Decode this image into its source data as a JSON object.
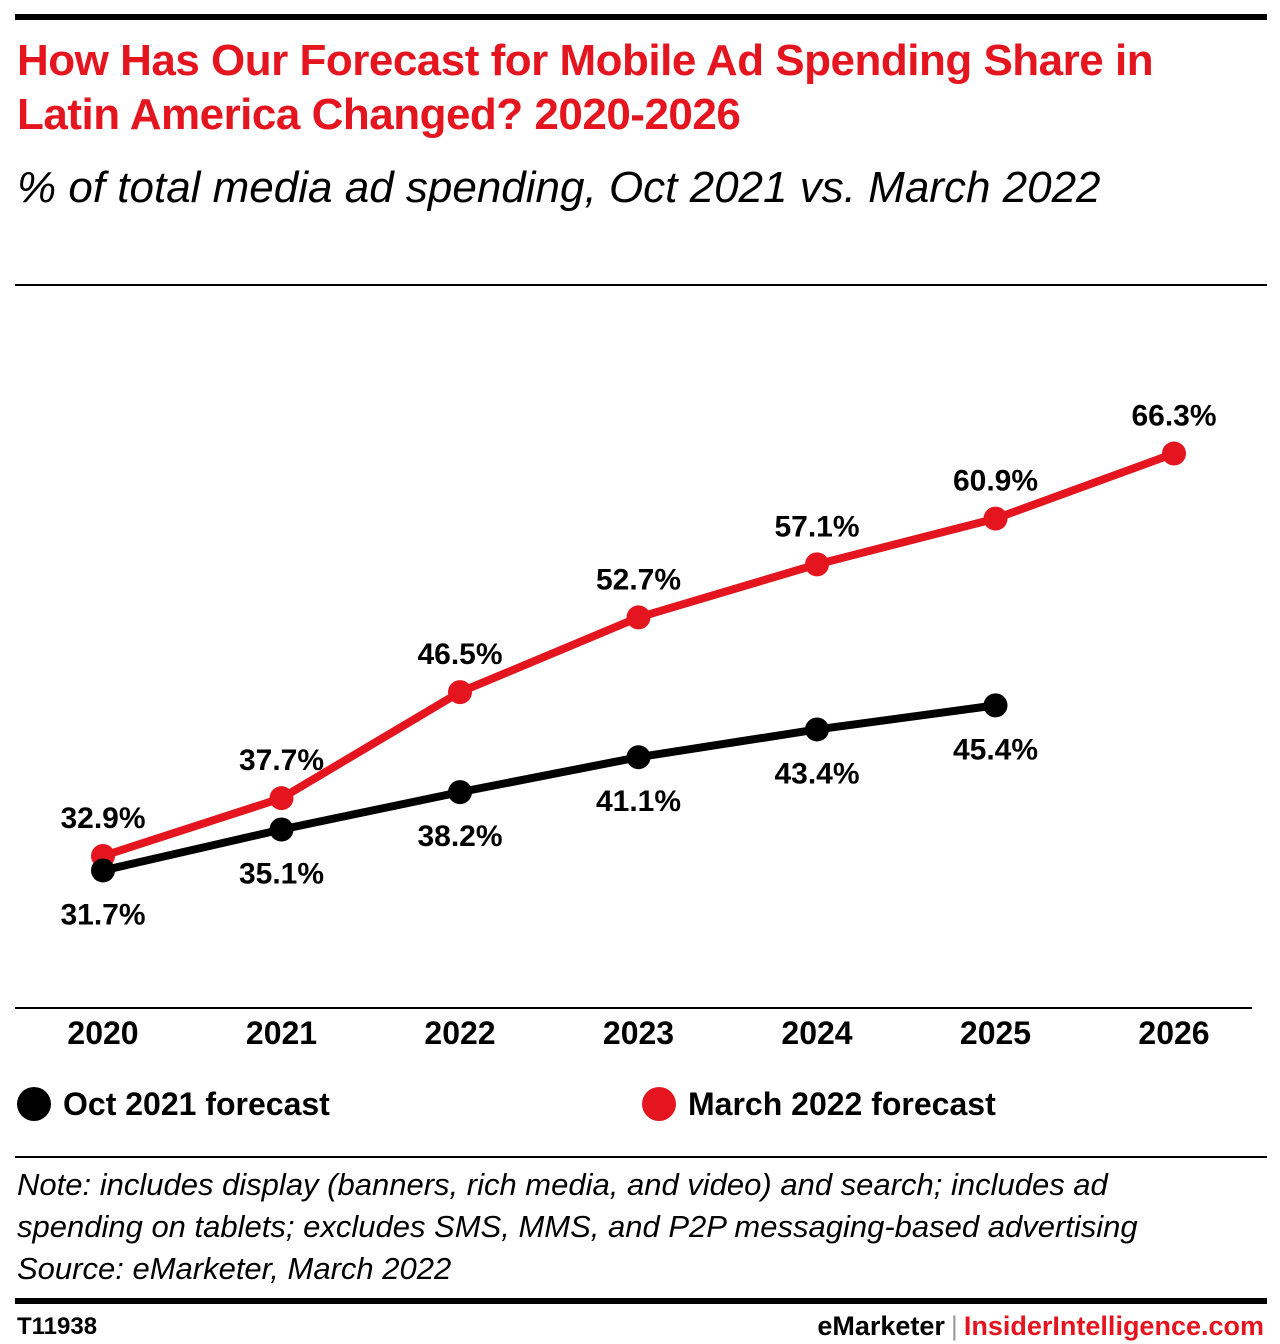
{
  "header": {
    "title": "How Has Our Forecast for Mobile Ad Spending Share in Latin America Changed? 2020-2026",
    "subtitle": "% of total media ad spending, Oct 2021 vs. March 2022"
  },
  "chart_data": {
    "type": "line",
    "x": [
      "2020",
      "2021",
      "2022",
      "2023",
      "2024",
      "2025",
      "2026"
    ],
    "series": [
      {
        "name": "Oct 2021 forecast",
        "color": "#000000",
        "values": [
          31.7,
          35.1,
          38.2,
          41.1,
          43.4,
          45.4,
          null
        ],
        "labels": [
          "31.7%",
          "35.1%",
          "38.2%",
          "41.1%",
          "43.4%",
          "45.4%",
          null
        ]
      },
      {
        "name": "March 2022 forecast",
        "color": "#e4151f",
        "values": [
          32.9,
          37.7,
          46.5,
          52.7,
          57.1,
          60.9,
          66.3
        ],
        "labels": [
          "32.9%",
          "37.7%",
          "46.5%",
          "52.7%",
          "57.1%",
          "60.9%",
          "66.3%"
        ]
      }
    ],
    "ylim": [
      20,
      70
    ],
    "grid": false,
    "legend": "bottom"
  },
  "legend": {
    "oct": {
      "label": "Oct 2021 forecast",
      "color": "#000000"
    },
    "march": {
      "label": "March 2022 forecast",
      "color": "#e4151f"
    }
  },
  "notes": {
    "line1": "Note: includes display (banners, rich media, and video) and search; includes ad",
    "line2": "spending on tablets; excludes SMS, MMS, and P2P messaging-based advertising",
    "source": "Source: eMarketer, March 2022"
  },
  "footer": {
    "id": "T11938",
    "brand": "eMarketer",
    "separator": "|",
    "site": "InsiderIntelligence.com"
  }
}
